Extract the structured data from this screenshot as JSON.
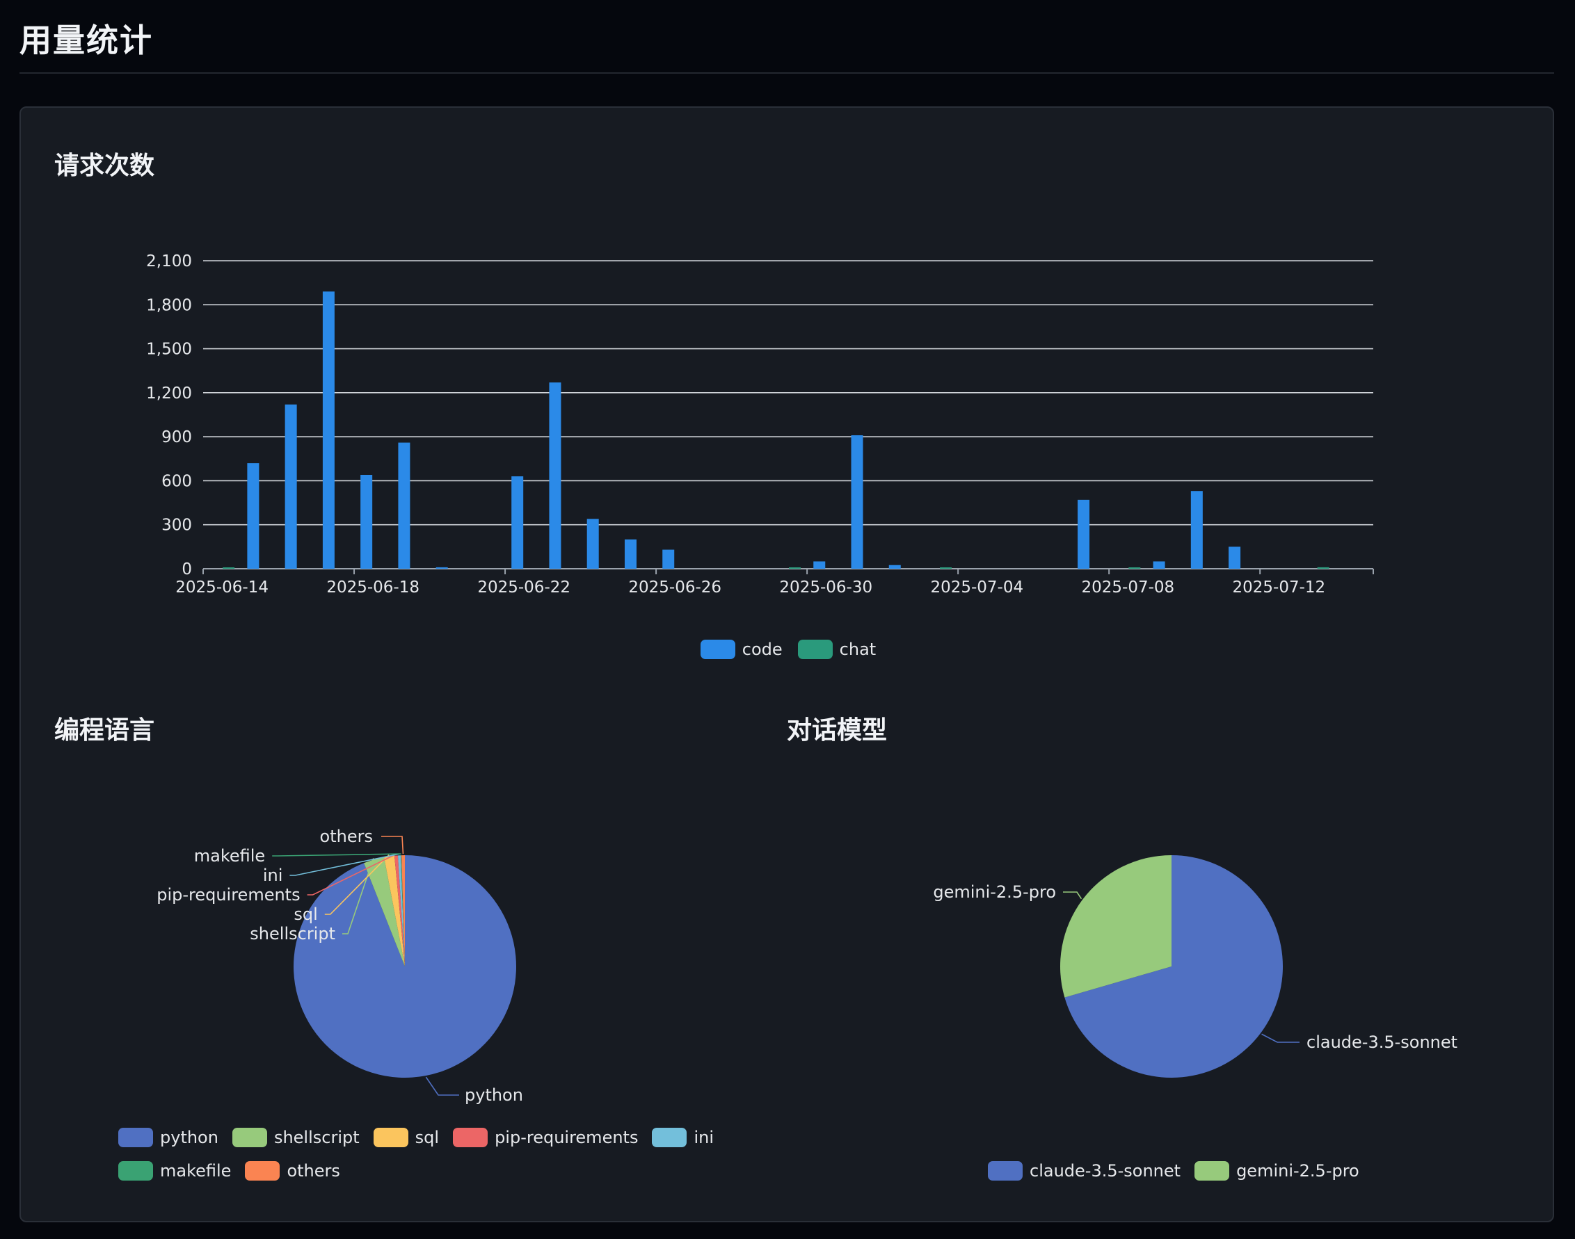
{
  "page": {
    "title": "用量统计"
  },
  "sections": {
    "requests_title": "请求次数",
    "languages_title": "编程语言",
    "models_title": "对话模型"
  },
  "colors": {
    "code": "#2b8ae8",
    "chat": "#2a9a7c",
    "python": "#5070c2",
    "shellscript": "#97ca7c",
    "sql": "#fbc55e",
    "pip-requirements": "#ec6666",
    "ini": "#73bfdb",
    "makefile": "#3aa273",
    "others": "#fa8452",
    "claude-3.5-sonnet": "#5070c2",
    "gemini-2.5-pro": "#97ca7c"
  },
  "chart_data": [
    {
      "type": "bar",
      "title": "请求次数",
      "ylim": [
        0,
        2100
      ],
      "yticks": [
        "0",
        "300",
        "600",
        "900",
        "1,200",
        "1,500",
        "1,800",
        "2,100"
      ],
      "grid": true,
      "legend_position": "bottom-center",
      "categories": [
        "2025-06-14",
        "2025-06-15",
        "2025-06-16",
        "2025-06-17",
        "2025-06-18",
        "2025-06-19",
        "2025-06-20",
        "2025-06-21",
        "2025-06-22",
        "2025-06-23",
        "2025-06-24",
        "2025-06-25",
        "2025-06-26",
        "2025-06-27",
        "2025-06-28",
        "2025-06-29",
        "2025-06-30",
        "2025-07-01",
        "2025-07-02",
        "2025-07-03",
        "2025-07-04",
        "2025-07-05",
        "2025-07-06",
        "2025-07-07",
        "2025-07-08",
        "2025-07-09",
        "2025-07-10",
        "2025-07-11",
        "2025-07-12",
        "2025-07-13",
        "2025-07-14"
      ],
      "xtick_labels": [
        "2025-06-14",
        "2025-06-18",
        "2025-06-22",
        "2025-06-26",
        "2025-06-30",
        "2025-07-04",
        "2025-07-08",
        "2025-07-12"
      ],
      "series": [
        {
          "name": "code",
          "values": [
            0,
            720,
            1120,
            1890,
            640,
            860,
            10,
            0,
            630,
            1270,
            340,
            200,
            130,
            0,
            0,
            0,
            50,
            910,
            25,
            0,
            0,
            0,
            0,
            470,
            0,
            50,
            530,
            150,
            0,
            0,
            0
          ]
        },
        {
          "name": "chat",
          "values": [
            3,
            0,
            0,
            0,
            0,
            0,
            0,
            0,
            0,
            0,
            0,
            0,
            0,
            0,
            0,
            3,
            0,
            0,
            0,
            5,
            0,
            0,
            0,
            0,
            5,
            0,
            0,
            0,
            0,
            10,
            0
          ]
        }
      ]
    },
    {
      "type": "pie",
      "title": "编程语言",
      "legend_position": "bottom",
      "slices": [
        {
          "name": "python",
          "value": 94.0
        },
        {
          "name": "shellscript",
          "value": 3.0
        },
        {
          "name": "sql",
          "value": 1.5
        },
        {
          "name": "pip-requirements",
          "value": 0.5
        },
        {
          "name": "ini",
          "value": 0.4
        },
        {
          "name": "makefile",
          "value": 0.1
        },
        {
          "name": "others",
          "value": 0.5
        }
      ]
    },
    {
      "type": "pie",
      "title": "对话模型",
      "legend_position": "bottom",
      "slices": [
        {
          "name": "claude-3.5-sonnet",
          "value": 70.5
        },
        {
          "name": "gemini-2.5-pro",
          "value": 29.5
        }
      ]
    }
  ]
}
